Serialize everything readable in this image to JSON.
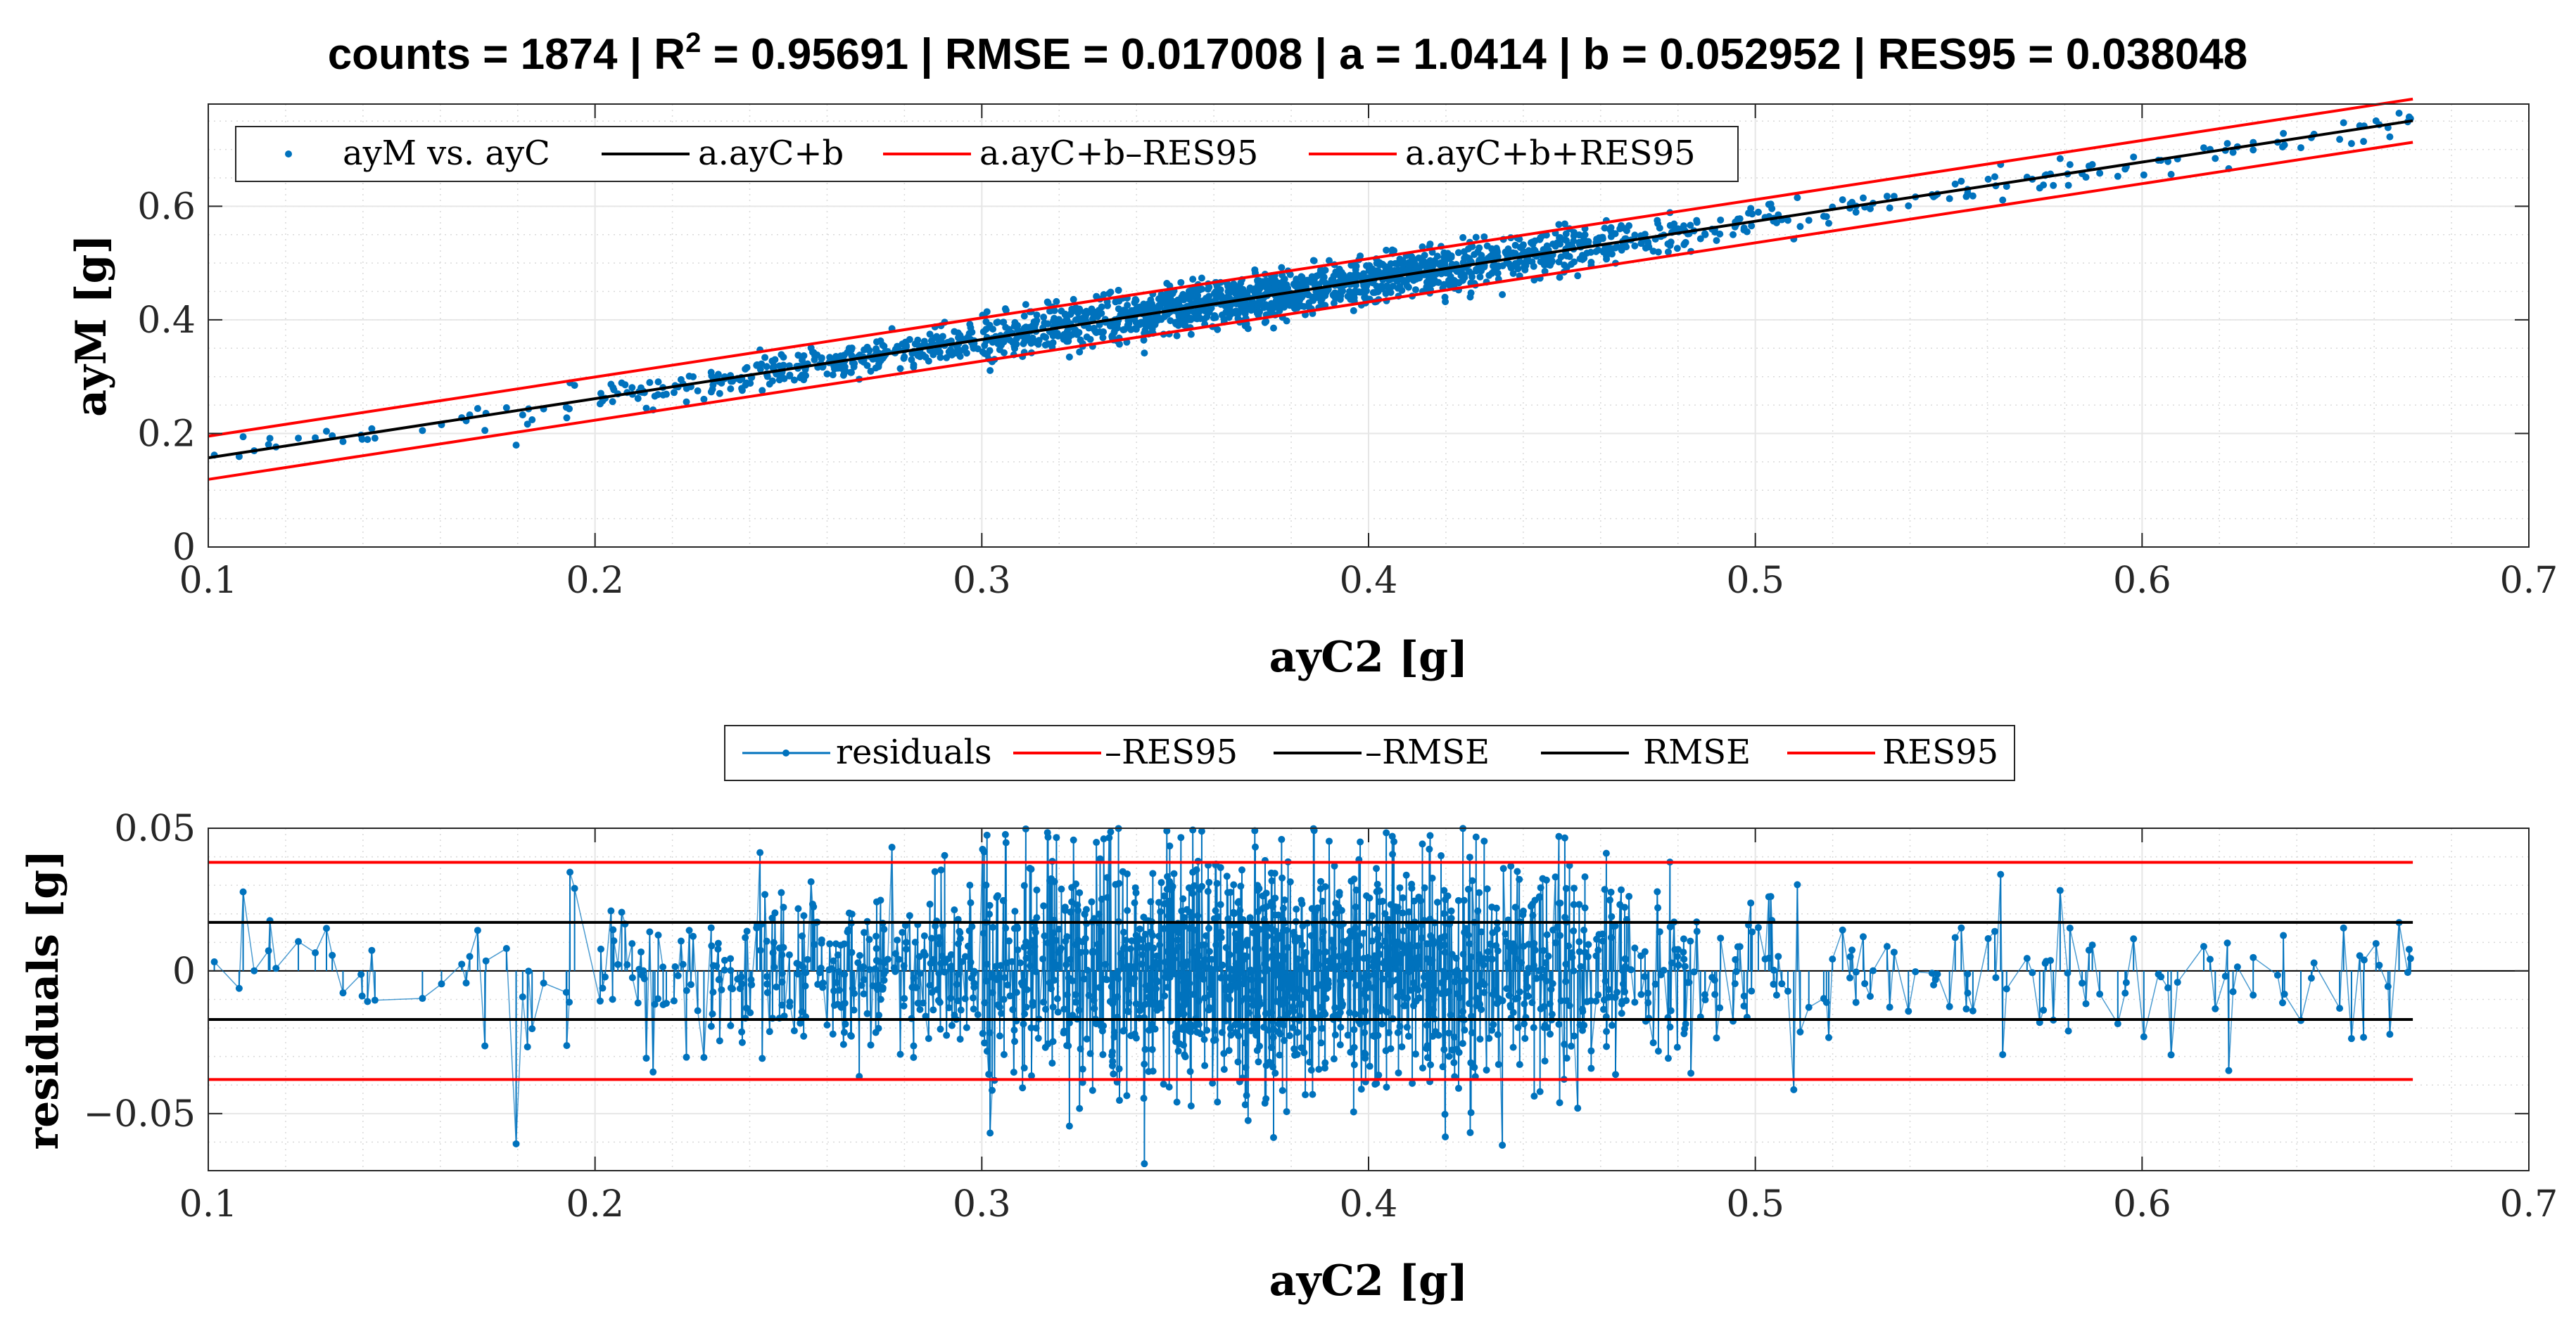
{
  "title": {
    "parts": [
      "counts = 1874 | R",
      "2",
      " = 0.95691 | RMSE = 0.017008 | a = 1.0414 | b = 0.052952 | RES95 = 0.038048"
    ]
  },
  "chart_data": [
    {
      "type": "scatter",
      "id": "fit",
      "xlabel": "ayC2 [g]",
      "ylabel": "ayM [g]",
      "xlim": [
        0.1,
        0.7
      ],
      "ylim": [
        0,
        0.78
      ],
      "xticks": [
        0.1,
        0.2,
        0.3,
        0.4,
        0.5,
        0.6,
        0.7
      ],
      "xtick_labels": [
        "0.1",
        "0.2",
        "0.3",
        "0.4",
        "0.5",
        "0.6",
        "0.7"
      ],
      "yticks": [
        0,
        0.2,
        0.4,
        0.6
      ],
      "ytick_labels": [
        "0",
        "0.2",
        "0.4",
        "0.6"
      ],
      "grid": true,
      "legend_position": "top-left",
      "count": 1874,
      "r2": 0.95691,
      "rmse": 0.017008,
      "slope_a": 1.0414,
      "intercept_b": 0.052952,
      "res95": 0.038048,
      "x_range_data": [
        0.1,
        0.67
      ],
      "series": [
        {
          "name": "ayM vs. ayC",
          "kind": "points",
          "color": "#0072BD"
        },
        {
          "name": "a.ayC+b",
          "kind": "line",
          "color": "#000000",
          "x": [
            0.1,
            0.67
          ],
          "y": [
            0.1571,
            0.7507
          ]
        },
        {
          "name": "a.ayC+b–RES95",
          "kind": "line",
          "color": "#FF0000",
          "x": [
            0.1,
            0.67
          ],
          "y": [
            0.1191,
            0.7127
          ]
        },
        {
          "name": "a.ayC+b+RES95",
          "kind": "line",
          "color": "#FF0000",
          "x": [
            0.1,
            0.67
          ],
          "y": [
            0.1952,
            0.7888
          ]
        }
      ]
    },
    {
      "type": "line",
      "id": "residuals",
      "xlabel": "ayC2 [g]",
      "ylabel": "residuals [g]",
      "xlim": [
        0.1,
        0.7
      ],
      "ylim": [
        -0.07,
        0.05
      ],
      "xticks": [
        0.1,
        0.2,
        0.3,
        0.4,
        0.5,
        0.6,
        0.7
      ],
      "xtick_labels": [
        "0.1",
        "0.2",
        "0.3",
        "0.4",
        "0.5",
        "0.6",
        "0.7"
      ],
      "yticks": [
        -0.05,
        0,
        0.05
      ],
      "ytick_labels": [
        "−0.05",
        "0",
        "0.05"
      ],
      "grid": true,
      "legend_position": "top-center",
      "series": [
        {
          "name": "residuals",
          "kind": "stem",
          "color": "#0072BD"
        },
        {
          "name": "–RES95",
          "kind": "hline",
          "color": "#FF0000",
          "y": -0.038048
        },
        {
          "name": "–RMSE",
          "kind": "hline",
          "color": "#000000",
          "y": -0.017008
        },
        {
          "name": "RMSE",
          "kind": "hline",
          "color": "#000000",
          "y": 0.017008
        },
        {
          "name": "RES95",
          "kind": "hline",
          "color": "#FF0000",
          "y": 0.038048
        }
      ],
      "zero_line": 0
    }
  ]
}
